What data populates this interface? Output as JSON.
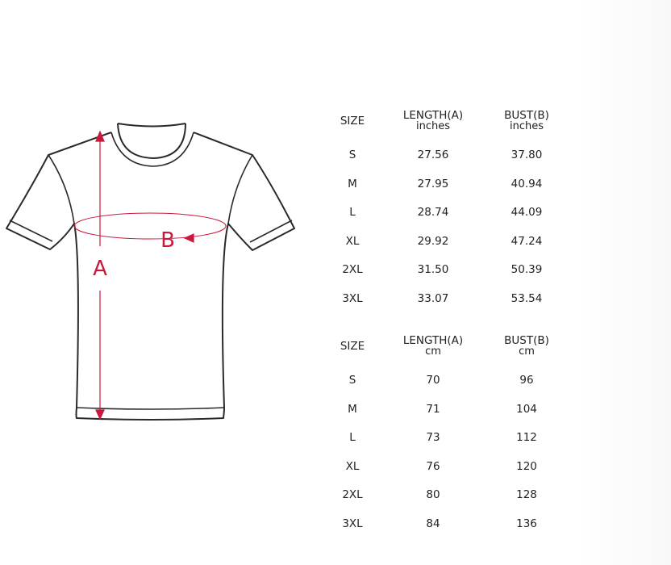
{
  "diagram": {
    "labels": {
      "length": "A",
      "bust": "B"
    },
    "accent_color": "#c8193c",
    "outline_color": "#2a2a2a"
  },
  "tables": [
    {
      "headers": {
        "size": "SIZE",
        "length": "LENGTH(A)",
        "length_unit": "inches",
        "bust": "BUST(B)",
        "bust_unit": "inches"
      },
      "rows": [
        {
          "size": "S",
          "length": "27.56",
          "bust": "37.80"
        },
        {
          "size": "M",
          "length": "27.95",
          "bust": "40.94"
        },
        {
          "size": "L",
          "length": "28.74",
          "bust": "44.09"
        },
        {
          "size": "XL",
          "length": "29.92",
          "bust": "47.24"
        },
        {
          "size": "2XL",
          "length": "31.50",
          "bust": "50.39"
        },
        {
          "size": "3XL",
          "length": "33.07",
          "bust": "53.54"
        }
      ]
    },
    {
      "headers": {
        "size": "SIZE",
        "length": "LENGTH(A)",
        "length_unit": "cm",
        "bust": "BUST(B)",
        "bust_unit": "cm"
      },
      "rows": [
        {
          "size": "S",
          "length": "70",
          "bust": "96"
        },
        {
          "size": "M",
          "length": "71",
          "bust": "104"
        },
        {
          "size": "L",
          "length": "73",
          "bust": "112"
        },
        {
          "size": "XL",
          "length": "76",
          "bust": "120"
        },
        {
          "size": "2XL",
          "length": "80",
          "bust": "128"
        },
        {
          "size": "3XL",
          "length": "84",
          "bust": "136"
        }
      ]
    }
  ]
}
